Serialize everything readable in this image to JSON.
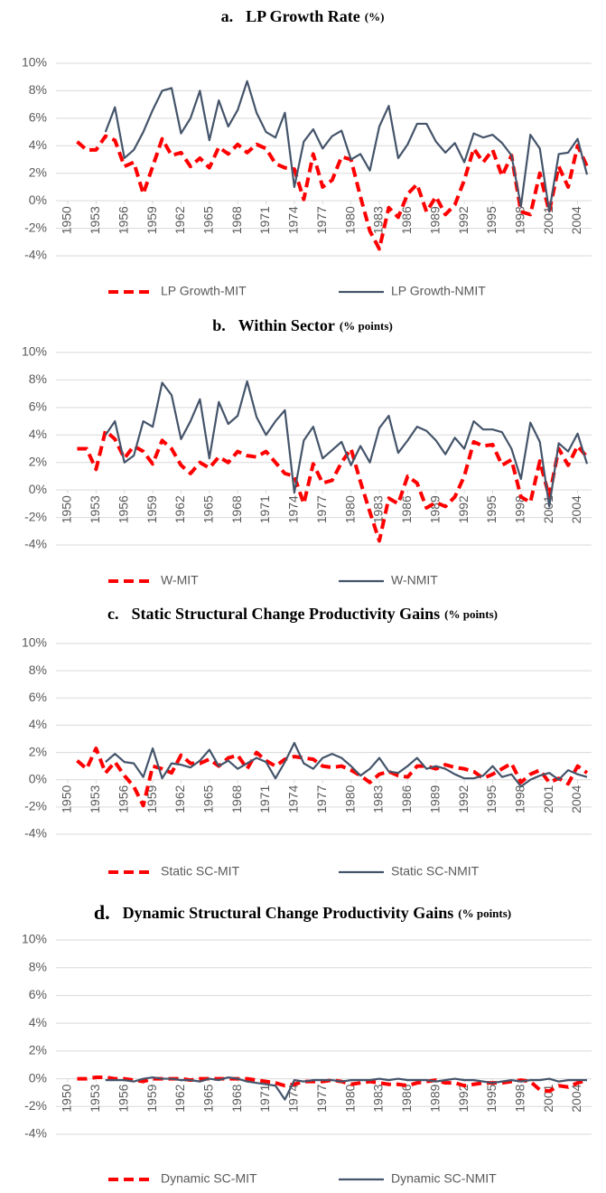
{
  "chart_data": [
    {
      "type": "line",
      "label": "a.",
      "title": "LP Growth Rate",
      "title_unit": "(%)",
      "x": [
        1950,
        1951,
        1952,
        1953,
        1954,
        1955,
        1956,
        1957,
        1958,
        1959,
        1960,
        1961,
        1962,
        1963,
        1964,
        1965,
        1966,
        1967,
        1968,
        1969,
        1970,
        1971,
        1972,
        1973,
        1974,
        1975,
        1976,
        1977,
        1978,
        1979,
        1980,
        1981,
        1982,
        1983,
        1984,
        1985,
        1986,
        1987,
        1988,
        1989,
        1990,
        1991,
        1992,
        1993,
        1994,
        1995,
        1996,
        1997,
        1998,
        1999,
        2000,
        2001,
        2002,
        2003,
        2004,
        2005
      ],
      "xlim": [
        1950,
        2005
      ],
      "xticks": [
        1950,
        1953,
        1956,
        1959,
        1962,
        1965,
        1968,
        1971,
        1974,
        1977,
        1980,
        1983,
        1986,
        1989,
        1992,
        1995,
        1998,
        2001,
        2004
      ],
      "ylim": [
        -4,
        10
      ],
      "yticks": [
        {
          "value": -4,
          "label": "-4%"
        },
        {
          "value": -2,
          "label": "-2%"
        },
        {
          "value": 0,
          "label": "0%"
        },
        {
          "value": 2,
          "label": "2%"
        },
        {
          "value": 4,
          "label": "4%"
        },
        {
          "value": 6,
          "label": "6%"
        },
        {
          "value": 8,
          "label": "8%"
        },
        {
          "value": 10,
          "label": "10%"
        }
      ],
      "grid": true,
      "series": [
        {
          "name": "LP Growth-MIT",
          "color": "#ff0000",
          "dashed": true,
          "values": [
            null,
            4.3,
            3.7,
            3.7,
            4.7,
            4.4,
            2.5,
            2.8,
            0.5,
            2.5,
            4.5,
            3.3,
            3.5,
            2.5,
            3.1,
            2.4,
            3.9,
            3.4,
            4.1,
            3.5,
            4.1,
            3.8,
            2.7,
            2.4,
            2.3,
            0.1,
            3.4,
            1.0,
            1.5,
            3.2,
            3.0,
            0.3,
            -2.2,
            -3.5,
            -0.5,
            -1.2,
            0.5,
            1.2,
            -0.8,
            0.3,
            -1.0,
            -0.3,
            1.5,
            3.8,
            2.8,
            3.7,
            1.8,
            3.3,
            -0.8,
            -1.0,
            2.0,
            -0.8,
            2.5,
            1.0,
            4.0,
            2.5
          ]
        },
        {
          "name": "LP Growth-NMIT",
          "color": "#44546a",
          "dashed": false,
          "values": [
            null,
            null,
            null,
            null,
            5.0,
            6.8,
            3.1,
            3.7,
            5.0,
            6.6,
            8.0,
            8.2,
            4.9,
            6.0,
            8.0,
            4.4,
            7.3,
            5.4,
            6.6,
            8.7,
            6.4,
            5.0,
            4.6,
            6.4,
            1.0,
            4.3,
            5.2,
            3.8,
            4.7,
            5.1,
            3.0,
            3.4,
            2.2,
            5.4,
            6.9,
            3.1,
            4.1,
            5.6,
            5.6,
            4.3,
            3.5,
            4.2,
            2.8,
            4.9,
            4.6,
            4.8,
            4.2,
            3.3,
            -0.4,
            4.8,
            3.8,
            -0.8,
            3.4,
            3.5,
            4.5,
            1.9
          ]
        }
      ]
    },
    {
      "type": "line",
      "label": "b.",
      "title": "Within Sector",
      "title_unit": "(% points)",
      "x": [
        1950,
        1951,
        1952,
        1953,
        1954,
        1955,
        1956,
        1957,
        1958,
        1959,
        1960,
        1961,
        1962,
        1963,
        1964,
        1965,
        1966,
        1967,
        1968,
        1969,
        1970,
        1971,
        1972,
        1973,
        1974,
        1975,
        1976,
        1977,
        1978,
        1979,
        1980,
        1981,
        1982,
        1983,
        1984,
        1985,
        1986,
        1987,
        1988,
        1989,
        1990,
        1991,
        1992,
        1993,
        1994,
        1995,
        1996,
        1997,
        1998,
        1999,
        2000,
        2001,
        2002,
        2003,
        2004,
        2005
      ],
      "xlim": [
        1950,
        2005
      ],
      "xticks": [
        1950,
        1953,
        1956,
        1959,
        1962,
        1965,
        1968,
        1971,
        1974,
        1977,
        1980,
        1983,
        1986,
        1989,
        1992,
        1995,
        1998,
        2001,
        2004
      ],
      "ylim": [
        -4,
        10
      ],
      "yticks": [
        {
          "value": -4,
          "label": "-4%"
        },
        {
          "value": -2,
          "label": "-2%"
        },
        {
          "value": 0,
          "label": "0%"
        },
        {
          "value": 2,
          "label": "2%"
        },
        {
          "value": 4,
          "label": "4%"
        },
        {
          "value": 6,
          "label": "6%"
        },
        {
          "value": 8,
          "label": "8%"
        },
        {
          "value": 10,
          "label": "10%"
        }
      ],
      "grid": true,
      "series": [
        {
          "name": "W-MIT",
          "color": "#ff0000",
          "dashed": true,
          "values": [
            null,
            3.0,
            3.0,
            1.5,
            4.3,
            3.7,
            2.3,
            3.2,
            2.8,
            1.9,
            3.6,
            3.0,
            1.8,
            1.2,
            2.0,
            1.6,
            2.4,
            2.0,
            2.8,
            2.5,
            2.4,
            2.8,
            2.0,
            1.2,
            1.0,
            -1.0,
            1.9,
            0.5,
            0.7,
            2.0,
            3.0,
            0.6,
            -1.6,
            -3.7,
            -0.6,
            -1.0,
            1.0,
            0.5,
            -1.3,
            -0.9,
            -1.2,
            -0.5,
            1.0,
            3.5,
            3.2,
            3.3,
            1.8,
            2.2,
            -0.5,
            -0.9,
            2.1,
            -0.5,
            3.0,
            1.8,
            3.2,
            2.4
          ]
        },
        {
          "name": "W-NMIT",
          "color": "#44546a",
          "dashed": false,
          "values": [
            null,
            null,
            null,
            null,
            4.0,
            5.0,
            2.0,
            2.5,
            5.0,
            4.6,
            7.8,
            6.9,
            3.7,
            5.0,
            6.6,
            2.3,
            6.4,
            4.8,
            5.4,
            7.9,
            5.3,
            4.0,
            5.0,
            5.8,
            -0.2,
            3.6,
            4.6,
            2.3,
            2.9,
            3.5,
            1.8,
            3.2,
            2.0,
            4.5,
            5.4,
            2.7,
            3.6,
            4.6,
            4.3,
            3.6,
            2.6,
            3.8,
            3.0,
            5.0,
            4.4,
            4.4,
            4.2,
            3.0,
            0.8,
            4.9,
            3.5,
            -1.2,
            3.4,
            2.8,
            4.1,
            1.9
          ]
        }
      ]
    },
    {
      "type": "line",
      "label": "c.",
      "title": "Static Structural Change Productivity Gains",
      "title_unit": "(% points)",
      "x": [
        1950,
        1951,
        1952,
        1953,
        1954,
        1955,
        1956,
        1957,
        1958,
        1959,
        1960,
        1961,
        1962,
        1963,
        1964,
        1965,
        1966,
        1967,
        1968,
        1969,
        1970,
        1971,
        1972,
        1973,
        1974,
        1975,
        1976,
        1977,
        1978,
        1979,
        1980,
        1981,
        1982,
        1983,
        1984,
        1985,
        1986,
        1987,
        1988,
        1989,
        1990,
        1991,
        1992,
        1993,
        1994,
        1995,
        1996,
        1997,
        1998,
        1999,
        2000,
        2001,
        2002,
        2003,
        2004,
        2005
      ],
      "xlim": [
        1950,
        2005
      ],
      "xticks": [
        1950,
        1953,
        1956,
        1959,
        1962,
        1965,
        1968,
        1971,
        1974,
        1977,
        1980,
        1983,
        1986,
        1989,
        1992,
        1995,
        1998,
        2001,
        2004
      ],
      "ylim": [
        -4,
        10
      ],
      "yticks": [
        {
          "value": -4,
          "label": "-4%"
        },
        {
          "value": -2,
          "label": "-2%"
        },
        {
          "value": 0,
          "label": "0%"
        },
        {
          "value": 2,
          "label": "2%"
        },
        {
          "value": 4,
          "label": "4%"
        },
        {
          "value": 6,
          "label": "6%"
        },
        {
          "value": 8,
          "label": "8%"
        },
        {
          "value": 10,
          "label": "10%"
        }
      ],
      "grid": true,
      "series": [
        {
          "name": "Static SC-MIT",
          "color": "#ff0000",
          "dashed": true,
          "values": [
            null,
            1.4,
            0.8,
            2.3,
            0.5,
            1.3,
            0.3,
            -0.5,
            -1.9,
            1.0,
            0.8,
            0.5,
            1.8,
            1.2,
            1.2,
            1.5,
            1.0,
            1.6,
            1.8,
            0.8,
            2.0,
            1.4,
            1.0,
            1.5,
            1.7,
            1.6,
            1.5,
            1.0,
            0.9,
            1.0,
            0.7,
            0.3,
            -0.2,
            0.4,
            0.6,
            0.3,
            0.2,
            1.0,
            1.0,
            0.8,
            1.1,
            0.9,
            0.8,
            0.6,
            0.1,
            0.4,
            0.8,
            1.2,
            -0.2,
            0.4,
            0.7,
            -0.2,
            0.1,
            -0.3,
            1.0,
            0.5
          ]
        },
        {
          "name": "Static SC-NMIT",
          "color": "#44546a",
          "dashed": false,
          "values": [
            null,
            null,
            null,
            null,
            1.3,
            1.9,
            1.3,
            1.2,
            0.2,
            2.3,
            0.1,
            1.2,
            1.1,
            0.9,
            1.4,
            2.2,
            1.0,
            1.4,
            0.8,
            1.2,
            1.6,
            1.3,
            0.1,
            1.3,
            2.7,
            1.2,
            0.8,
            1.6,
            1.9,
            1.6,
            1.0,
            0.3,
            0.8,
            1.6,
            0.6,
            0.5,
            1.0,
            1.6,
            0.8,
            1.0,
            0.8,
            0.4,
            0.1,
            0.1,
            0.3,
            1.0,
            0.2,
            0.4,
            -0.5,
            0.0,
            0.3,
            0.5,
            0.0,
            0.7,
            0.4,
            0.2
          ]
        }
      ]
    },
    {
      "type": "line",
      "label": "d.",
      "title": "Dynamic Structural Change Productivity Gains",
      "title_unit": "(% points)",
      "x": [
        1950,
        1951,
        1952,
        1953,
        1954,
        1955,
        1956,
        1957,
        1958,
        1959,
        1960,
        1961,
        1962,
        1963,
        1964,
        1965,
        1966,
        1967,
        1968,
        1969,
        1970,
        1971,
        1972,
        1973,
        1974,
        1975,
        1976,
        1977,
        1978,
        1979,
        1980,
        1981,
        1982,
        1983,
        1984,
        1985,
        1986,
        1987,
        1988,
        1989,
        1990,
        1991,
        1992,
        1993,
        1994,
        1995,
        1996,
        1997,
        1998,
        1999,
        2000,
        2001,
        2002,
        2003,
        2004,
        2005
      ],
      "xlim": [
        1950,
        2005
      ],
      "xticks": [
        1950,
        1953,
        1956,
        1959,
        1962,
        1965,
        1968,
        1971,
        1974,
        1977,
        1980,
        1983,
        1986,
        1989,
        1992,
        1995,
        1998,
        2001,
        2004
      ],
      "ylim": [
        -4,
        10
      ],
      "yticks": [
        {
          "value": -4,
          "label": "-4%"
        },
        {
          "value": -2,
          "label": "-2%"
        },
        {
          "value": 0,
          "label": "0%"
        },
        {
          "value": 2,
          "label": "2%"
        },
        {
          "value": 4,
          "label": "4%"
        },
        {
          "value": 6,
          "label": "6%"
        },
        {
          "value": 8,
          "label": "8%"
        },
        {
          "value": 10,
          "label": "10%"
        }
      ],
      "grid": true,
      "series": [
        {
          "name": "Dynamic SC-MIT",
          "color": "#ff0000",
          "dashed": true,
          "values": [
            null,
            0.0,
            0.0,
            0.1,
            0.1,
            0.0,
            0.0,
            -0.1,
            -0.2,
            0.0,
            0.0,
            0.0,
            0.0,
            -0.1,
            0.0,
            0.0,
            0.0,
            0.0,
            0.0,
            0.0,
            -0.1,
            -0.2,
            -0.3,
            -0.5,
            -0.4,
            -0.2,
            -0.2,
            -0.2,
            -0.1,
            -0.2,
            -0.4,
            -0.3,
            -0.2,
            -0.3,
            -0.4,
            -0.4,
            -0.5,
            -0.3,
            -0.2,
            -0.1,
            -0.3,
            -0.3,
            -0.5,
            -0.4,
            -0.3,
            -0.3,
            -0.3,
            -0.2,
            -0.1,
            -0.2,
            -0.8,
            -0.9,
            -0.5,
            -0.6,
            -0.3,
            -0.1
          ]
        },
        {
          "name": "Dynamic SC-NMIT",
          "color": "#44546a",
          "dashed": false,
          "values": [
            null,
            null,
            null,
            null,
            -0.1,
            -0.1,
            -0.1,
            -0.2,
            0.0,
            0.1,
            0.0,
            0.0,
            -0.1,
            -0.1,
            -0.2,
            0.0,
            -0.1,
            0.1,
            0.0,
            -0.2,
            -0.3,
            -0.4,
            -0.5,
            -1.5,
            -0.1,
            -0.2,
            -0.1,
            -0.1,
            -0.1,
            -0.2,
            -0.1,
            -0.1,
            -0.1,
            0.0,
            -0.1,
            0.0,
            -0.1,
            -0.1,
            -0.1,
            -0.2,
            -0.1,
            0.0,
            -0.1,
            -0.1,
            -0.2,
            -0.3,
            -0.2,
            -0.1,
            -0.2,
            -0.1,
            -0.1,
            0.0,
            -0.2,
            -0.1,
            -0.1,
            -0.1
          ]
        }
      ]
    }
  ]
}
